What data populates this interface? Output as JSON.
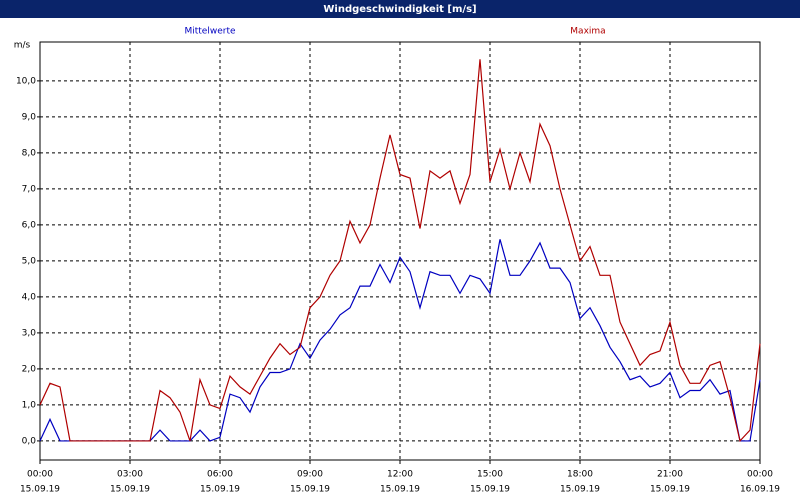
{
  "chart_data": {
    "type": "line",
    "title": "Windgeschwindigkeit [m/s]",
    "ylabel": "m/s",
    "x": [
      0,
      20,
      40,
      60,
      80,
      100,
      120,
      140,
      160,
      180,
      200,
      220,
      240,
      260,
      280,
      300,
      320,
      340,
      360,
      380,
      400,
      420,
      440,
      460,
      480,
      500,
      520,
      540,
      560,
      580,
      600,
      620,
      640,
      660,
      680,
      700,
      720,
      740,
      760,
      780,
      800,
      820,
      840,
      860,
      880,
      900,
      920,
      940,
      960,
      980,
      1000,
      1020,
      1040,
      1060,
      1080,
      1100,
      1120,
      1140,
      1160,
      1180,
      1200,
      1220,
      1240,
      1260,
      1280,
      1300,
      1320,
      1340,
      1360,
      1380,
      1400,
      1420,
      1440
    ],
    "series": [
      {
        "name": "Mittelwerte",
        "color": "#0000c0",
        "values": [
          0,
          0.6,
          0,
          0,
          0,
          0,
          0,
          0,
          0,
          0,
          0,
          0,
          0.3,
          0,
          0,
          0,
          0.3,
          0,
          0.1,
          1.3,
          1.2,
          0.8,
          1.5,
          1.9,
          1.9,
          2.0,
          2.7,
          2.3,
          2.8,
          3.1,
          3.5,
          3.7,
          4.3,
          4.3,
          4.9,
          4.4,
          5.1,
          4.7,
          3.7,
          4.7,
          4.6,
          4.6,
          4.1,
          4.6,
          4.5,
          4.1,
          5.6,
          4.6,
          4.6,
          5.0,
          5.5,
          4.8,
          4.8,
          4.4,
          3.4,
          3.7,
          3.2,
          2.6,
          2.2,
          1.7,
          1.8,
          1.5,
          1.6,
          1.9,
          1.2,
          1.4,
          1.4,
          1.7,
          1.3,
          1.4,
          0,
          0,
          1.7
        ]
      },
      {
        "name": "Maxima",
        "color": "#b00000",
        "values": [
          1.0,
          1.6,
          1.5,
          0,
          0,
          0,
          0,
          0,
          0,
          0,
          0,
          0,
          1.4,
          1.2,
          0.8,
          0,
          1.7,
          1.0,
          0.9,
          1.8,
          1.5,
          1.3,
          1.8,
          2.3,
          2.7,
          2.4,
          2.6,
          3.7,
          4.0,
          4.6,
          5.0,
          6.1,
          5.5,
          6.0,
          7.3,
          8.5,
          7.4,
          7.3,
          5.9,
          7.5,
          7.3,
          7.5,
          6.6,
          7.4,
          10.6,
          7.2,
          8.1,
          7.0,
          8.0,
          7.2,
          8.8,
          8.2,
          7.0,
          6.0,
          5.0,
          5.4,
          4.6,
          4.6,
          3.3,
          2.7,
          2.1,
          2.4,
          2.5,
          3.3,
          2.1,
          1.6,
          1.6,
          2.1,
          2.2,
          1.2,
          0,
          0.3,
          2.7
        ]
      }
    ],
    "xlim": [
      0,
      1440
    ],
    "xticks": [
      {
        "value": 0,
        "label": "00:00"
      },
      {
        "value": 180,
        "label": "03:00"
      },
      {
        "value": 360,
        "label": "06:00"
      },
      {
        "value": 540,
        "label": "09:00"
      },
      {
        "value": 720,
        "label": "12:00"
      },
      {
        "value": 900,
        "label": "15:00"
      },
      {
        "value": 1080,
        "label": "18:00"
      },
      {
        "value": 1260,
        "label": "21:00"
      },
      {
        "value": 1440,
        "label": "00:00"
      }
    ],
    "xtick_dates": [
      "15.09.19",
      "15.09.19",
      "15.09.19",
      "15.09.19",
      "15.09.19",
      "15.09.19",
      "15.09.19",
      "15.09.19",
      "16.09.19"
    ],
    "ylim": [
      -0.53,
      11.08
    ],
    "yticks": [
      {
        "value": 0,
        "label": "0,0"
      },
      {
        "value": 1,
        "label": "1,0"
      },
      {
        "value": 2,
        "label": "2,0"
      },
      {
        "value": 3,
        "label": "3,0"
      },
      {
        "value": 4,
        "label": "4,0"
      },
      {
        "value": 5,
        "label": "5,0"
      },
      {
        "value": 6,
        "label": "6,0"
      },
      {
        "value": 7,
        "label": "7,0"
      },
      {
        "value": 8,
        "label": "8,0"
      },
      {
        "value": 9,
        "label": "9,0"
      },
      {
        "value": 10,
        "label": "10,0"
      }
    ],
    "grid": true
  }
}
